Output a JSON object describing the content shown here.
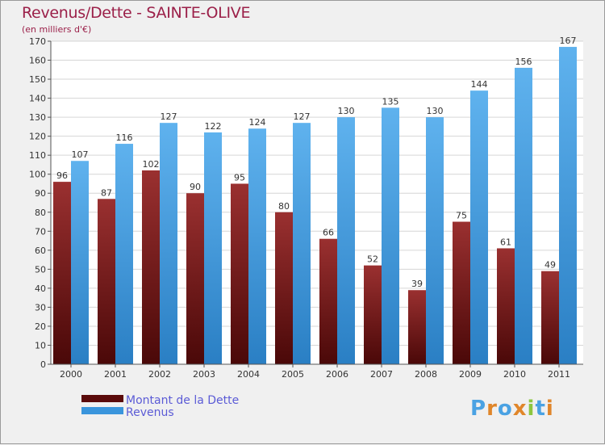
{
  "title": "Revenus/Dette - SAINTE-OLIVE",
  "subtitle": "(en milliers d'€)",
  "logo": "Proxiti",
  "colors": {
    "debt": "#7a1a1a",
    "debt_light": "#a83a3a",
    "revenue": "#4aa2e3",
    "revenue_dark": "#2a7fc4",
    "title": "#9b2049",
    "legend_text": "#5b5bd6"
  },
  "chart_data": {
    "type": "bar",
    "title": "Revenus/Dette - SAINTE-OLIVE",
    "subtitle": "(en milliers d'€)",
    "categories": [
      "2000",
      "2001",
      "2002",
      "2003",
      "2004",
      "2005",
      "2006",
      "2007",
      "2008",
      "2009",
      "2010",
      "2011"
    ],
    "series": [
      {
        "name": "Montant de la Dette",
        "values": [
          96,
          87,
          102,
          90,
          95,
          80,
          66,
          52,
          39,
          75,
          61,
          49
        ]
      },
      {
        "name": "Revenus",
        "values": [
          107,
          116,
          127,
          122,
          124,
          127,
          130,
          135,
          130,
          144,
          156,
          167
        ]
      }
    ],
    "ylim": [
      0,
      170
    ],
    "yticks": [
      0,
      10,
      20,
      30,
      40,
      50,
      60,
      70,
      80,
      90,
      100,
      110,
      120,
      130,
      140,
      150,
      160,
      170
    ],
    "grid": true,
    "legend": "bottom-left"
  }
}
